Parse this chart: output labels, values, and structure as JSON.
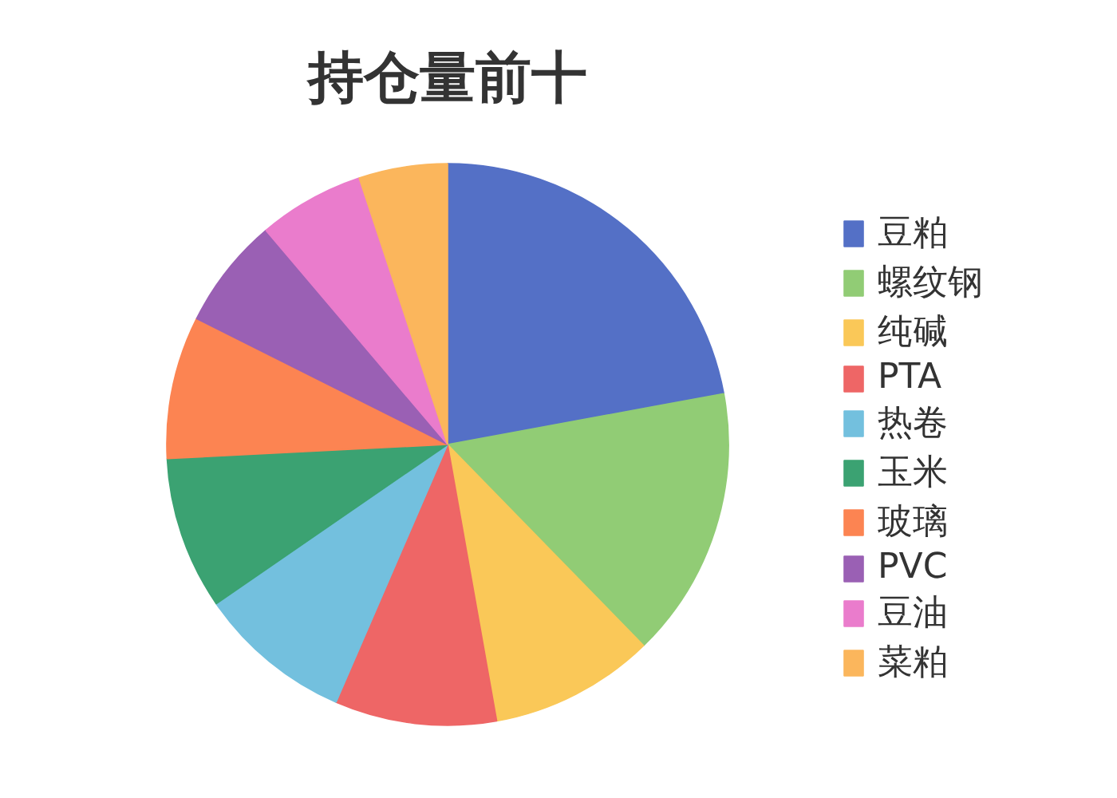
{
  "chart_data": {
    "type": "pie",
    "title": "持仓量前十",
    "categories": [
      "豆粕",
      "螺纹钢",
      "纯碱",
      "PTA",
      "热卷",
      "玉米",
      "玻璃",
      "PVC",
      "豆油",
      "菜粕"
    ],
    "values": [
      22.1,
      15.6,
      9.5,
      9.3,
      8.9,
      8.8,
      8.2,
      6.4,
      6.1,
      5.1
    ],
    "colors": [
      "#5470c6",
      "#91cc75",
      "#fac858",
      "#ee6666",
      "#73c0de",
      "#3ba272",
      "#fc8452",
      "#9a60b4",
      "#ea7ccc",
      "#fbb65c"
    ],
    "legend": "right"
  }
}
